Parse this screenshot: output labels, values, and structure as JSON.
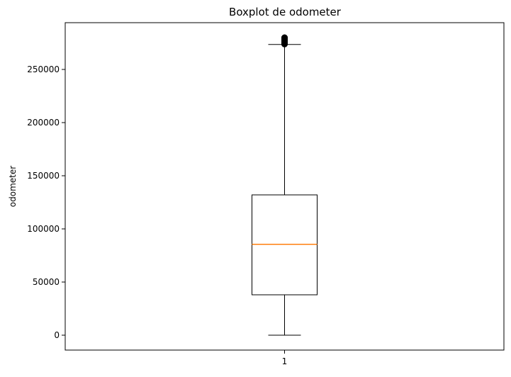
{
  "chart_data": {
    "type": "boxplot",
    "title": "Boxplot de odometer",
    "xlabel": "",
    "ylabel": "odometer",
    "categories": [
      "1"
    ],
    "ylim": [
      -14000,
      294000
    ],
    "yticks": [
      0,
      50000,
      100000,
      150000,
      200000,
      250000
    ],
    "ytick_labels": [
      "0",
      "50000",
      "100000",
      "150000",
      "200000",
      "250000"
    ],
    "boxes": [
      {
        "category": "1",
        "whisker_low": 0,
        "q1": 38000,
        "median": 85500,
        "q3": 132000,
        "whisker_high": 273500,
        "outliers": [
          273800,
          274000,
          274200,
          274400,
          274600,
          274800,
          275000,
          275200,
          275500,
          275800,
          276100,
          276400,
          276700,
          277000,
          277300,
          277600,
          277900,
          278200,
          278500,
          278800,
          279000,
          279200,
          279400,
          279600,
          279800,
          280000
        ]
      }
    ],
    "colors": {
      "box": "#000000",
      "whisker": "#000000",
      "median": "#ff7f0e",
      "outlier": "#000000"
    },
    "grid": false,
    "legend": "none"
  }
}
